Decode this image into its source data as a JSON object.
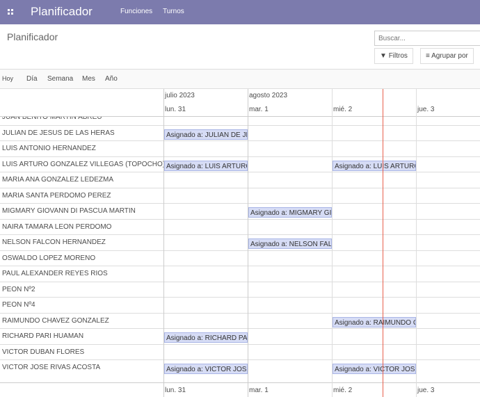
{
  "nav": {
    "app_title": "Planificador",
    "menu": [
      "Funciones",
      "Turnos"
    ]
  },
  "control": {
    "title": "Planificador",
    "search_placeholder": "Buscar...",
    "filters": "Filtros",
    "group_by": "Agrupar por"
  },
  "scales": [
    "Hoy",
    "Día",
    "Semana",
    "Mes",
    "Año"
  ],
  "months": [
    "julio 2023",
    "agosto 2023"
  ],
  "days": [
    "lun. 31",
    "mar. 1",
    "mié. 2",
    "jue. 3"
  ],
  "accent": "#7c7bad",
  "now_line_color": "#e8604c",
  "pill_color": "#d6dcf5",
  "rows": [
    {
      "name": "JUAN BENITO MARTIN ABREU",
      "shifts": []
    },
    {
      "name": "JULIAN DE JESUS DE LAS HERAS",
      "shifts": [
        {
          "day": 0,
          "label": "Asignado a: JULIAN DE JESUS DE LAS HERAS"
        }
      ]
    },
    {
      "name": "LUIS ANTONIO HERNANDEZ",
      "shifts": []
    },
    {
      "name": "LUIS ARTURO GONZALEZ VILLEGAS (TOPOCHO)",
      "shifts": [
        {
          "day": 0,
          "label": "Asignado a: LUIS ARTURO GONZALEZ VILLEGAS (TOPOCHO)"
        },
        {
          "day": 2,
          "label": "Asignado a: LUIS ARTURO GONZALEZ VILLEGAS (TOPOCHO)"
        }
      ]
    },
    {
      "name": "MARIA ANA GONZALEZ LEDEZMA",
      "shifts": []
    },
    {
      "name": "MARIA SANTA PERDOMO PEREZ",
      "shifts": []
    },
    {
      "name": "MIGMARY GIOVANN DI PASCUA MARTIN",
      "shifts": [
        {
          "day": 1,
          "label": "Asignado a: MIGMARY GIOVANN DI PASCUA MARTIN"
        }
      ]
    },
    {
      "name": "NAIRA TAMARA LEON PERDOMO",
      "shifts": []
    },
    {
      "name": "NELSON FALCON HERNANDEZ",
      "shifts": [
        {
          "day": 1,
          "label": "Asignado a: NELSON FALCON HERNANDEZ"
        }
      ]
    },
    {
      "name": "OSWALDO LOPEZ MORENO",
      "shifts": []
    },
    {
      "name": "PAUL ALEXANDER REYES RIOS",
      "shifts": []
    },
    {
      "name": "PEON Nº2",
      "shifts": []
    },
    {
      "name": "PEON Nº4",
      "shifts": []
    },
    {
      "name": "RAIMUNDO CHAVEZ GONZALEZ",
      "shifts": [
        {
          "day": 2,
          "label": "Asignado a: RAIMUNDO CHAVEZ GONZALEZ"
        }
      ]
    },
    {
      "name": "RICHARD PARI HUAMAN",
      "shifts": [
        {
          "day": 0,
          "label": "Asignado a: RICHARD PARI HUAMAN"
        }
      ]
    },
    {
      "name": "VICTOR DUBAN FLORES",
      "shifts": []
    },
    {
      "name": "VICTOR JOSE RIVAS ACOSTA",
      "shifts": [
        {
          "day": 0,
          "label": "Asignado a: VICTOR JOSE RIVAS ACOSTA"
        },
        {
          "day": 2,
          "label": "Asignado a: VICTOR JOSE RIVAS ACOSTA"
        }
      ]
    }
  ]
}
